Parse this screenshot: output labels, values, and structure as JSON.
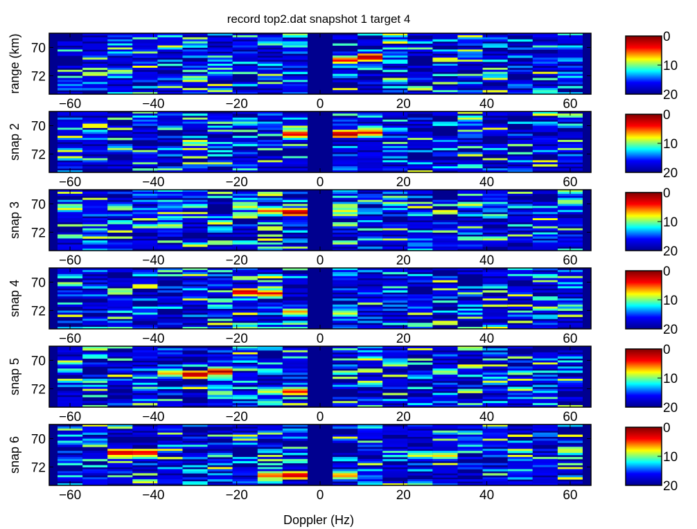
{
  "title": "record top2.dat snapshot 1 target 4",
  "xlabel": "Doppler (Hz)",
  "colors": {
    "colormap": [
      "#00008f",
      "#0000ff",
      "#00ffff",
      "#ffff00",
      "#ff0000",
      "#800000"
    ],
    "axes": "#000000",
    "background": "#ffffff"
  },
  "chart_data": {
    "type": "heatmap",
    "layout": "six stacked range-Doppler panels, each with its own vertical colorbar on the right",
    "xlim": [
      -65,
      65
    ],
    "x_ticks": [
      -60,
      -40,
      -20,
      0,
      20,
      40,
      60
    ],
    "x_tick_labels": [
      "−60",
      "−40",
      "−20",
      "0",
      "20",
      "40",
      "60"
    ],
    "ylim": [
      69,
      73.3
    ],
    "y_ticks": [
      70,
      72
    ],
    "y_tick_labels": [
      "70",
      "72"
    ],
    "doppler_bins": [
      -60,
      -54,
      -48,
      -42,
      -36,
      -30,
      -24,
      -18,
      -12,
      -6,
      0,
      6,
      12,
      18,
      24,
      30,
      36,
      42,
      48,
      54,
      60
    ],
    "colorbar": {
      "ticks": [
        0,
        10,
        20
      ],
      "tick_labels": [
        "0",
        "10",
        "20"
      ],
      "direction": "0 at top (red) to 20 at bottom (blue)"
    },
    "panels": [
      {
        "ylabel": "range (km)",
        "hotspots": [
          {
            "doppler": 12,
            "range": 70.7,
            "level": 1.0
          },
          {
            "doppler": 6,
            "range": 70.9,
            "level": 0.85
          }
        ]
      },
      {
        "ylabel": "snap 2",
        "hotspots": [
          {
            "doppler": -6,
            "range": 70.6,
            "level": 0.9
          },
          {
            "doppler": 6,
            "range": 70.6,
            "level": 1.0
          },
          {
            "doppler": 12,
            "range": 70.5,
            "level": 0.85
          }
        ]
      },
      {
        "ylabel": "snap 3",
        "hotspots": [
          {
            "doppler": -6,
            "range": 70.6,
            "level": 1.0
          },
          {
            "doppler": -12,
            "range": 70.5,
            "level": 0.75
          },
          {
            "doppler": -18,
            "range": 70.2,
            "level": 0.6
          },
          {
            "doppler": 6,
            "range": 70.5,
            "level": 0.6
          }
        ]
      },
      {
        "ylabel": "snap 4",
        "hotspots": [
          {
            "doppler": -18,
            "range": 70.7,
            "level": 0.95
          },
          {
            "doppler": -12,
            "range": 70.8,
            "level": 0.85
          },
          {
            "doppler": -6,
            "range": 72.1,
            "level": 0.7
          },
          {
            "doppler": 6,
            "range": 72.2,
            "level": 0.6
          }
        ]
      },
      {
        "ylabel": "snap 5",
        "hotspots": [
          {
            "doppler": -30,
            "range": 71.0,
            "level": 1.0
          },
          {
            "doppler": -24,
            "range": 70.8,
            "level": 0.95
          },
          {
            "doppler": -36,
            "range": 70.9,
            "level": 0.7
          },
          {
            "doppler": -6,
            "range": 72.2,
            "level": 0.85
          },
          {
            "doppler": -12,
            "range": 72.2,
            "level": 0.6
          }
        ]
      },
      {
        "ylabel": "snap 6",
        "hotspots": [
          {
            "doppler": -48,
            "range": 71.0,
            "level": 0.95
          },
          {
            "doppler": -42,
            "range": 71.0,
            "level": 0.9
          },
          {
            "doppler": -6,
            "range": 72.6,
            "level": 0.95
          },
          {
            "doppler": -12,
            "range": 72.6,
            "level": 0.8
          },
          {
            "doppler": 6,
            "range": 72.6,
            "level": 0.75
          },
          {
            "doppler": 30,
            "range": 71.2,
            "level": 0.65
          }
        ]
      }
    ]
  }
}
